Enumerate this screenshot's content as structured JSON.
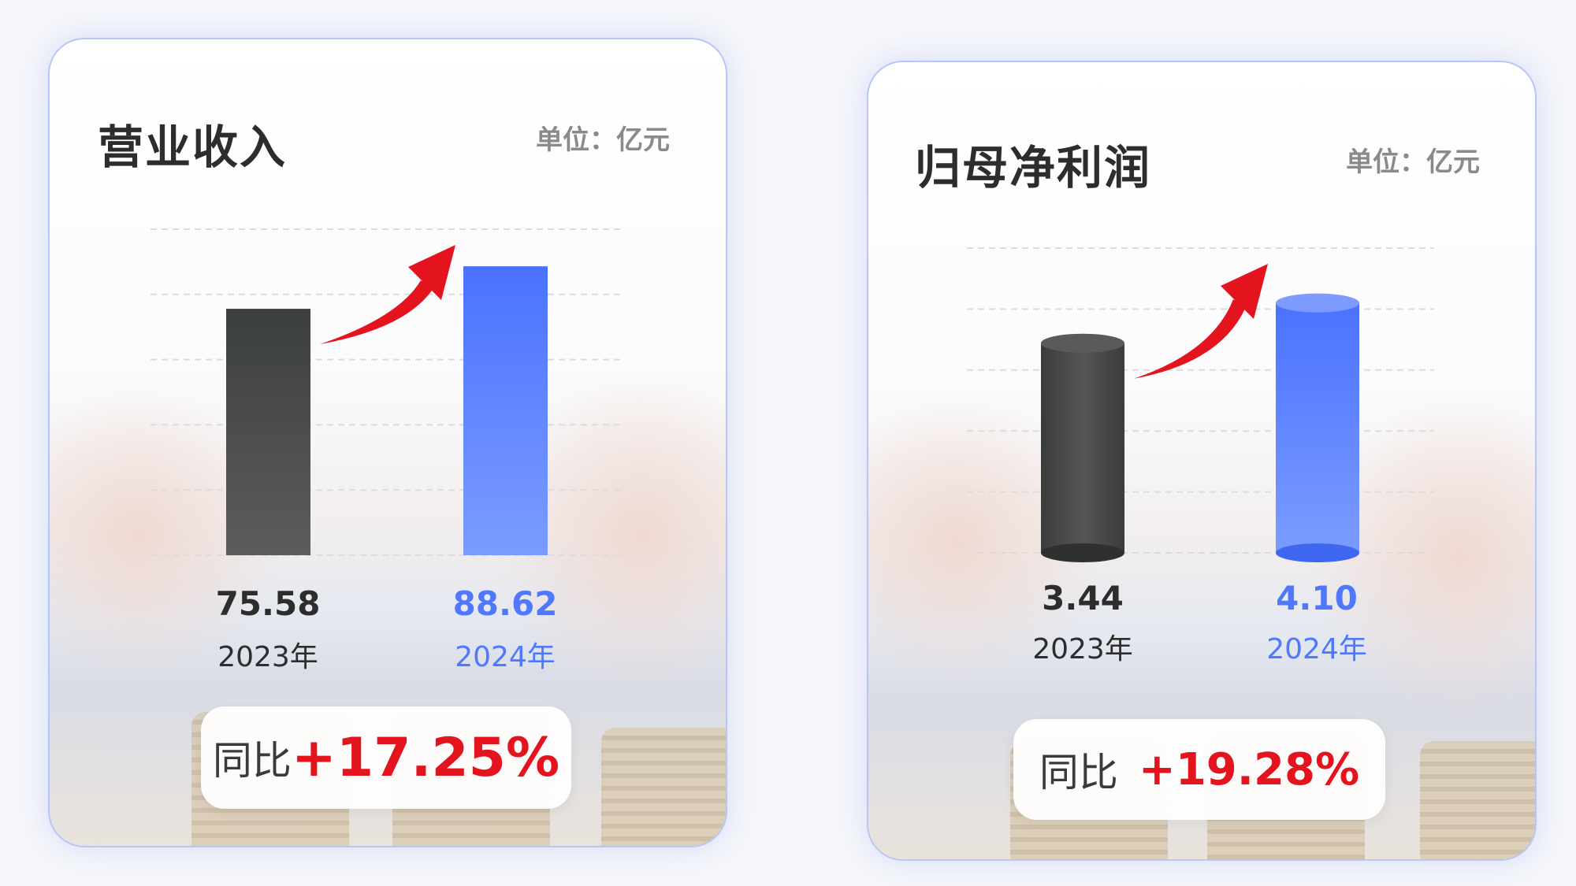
{
  "colors": {
    "prev_year": "#4a4c4c",
    "curr_year": "#4f78ff",
    "growth": "#e3141e",
    "border": "#b9c6f5"
  },
  "chart_data": [
    {
      "type": "bar",
      "title": "营业收入",
      "unit": "单位：亿元",
      "categories": [
        "2023年",
        "2024年"
      ],
      "values": [
        75.58,
        88.62
      ],
      "value_labels": [
        "75.58",
        "88.62"
      ],
      "ylim": [
        0,
        100
      ],
      "grid": true,
      "bar_style": "flat",
      "growth_label": "同比",
      "growth_value": "+17.25%"
    },
    {
      "type": "bar",
      "title": "归母净利润",
      "unit": "单位：亿元",
      "categories": [
        "2023年",
        "2024年"
      ],
      "values": [
        3.44,
        4.1
      ],
      "value_labels": [
        "3.44",
        "4.10"
      ],
      "ylim": [
        0,
        5
      ],
      "grid": true,
      "bar_style": "cylinder",
      "growth_label": "同比",
      "growth_value": "+19.28%"
    }
  ]
}
